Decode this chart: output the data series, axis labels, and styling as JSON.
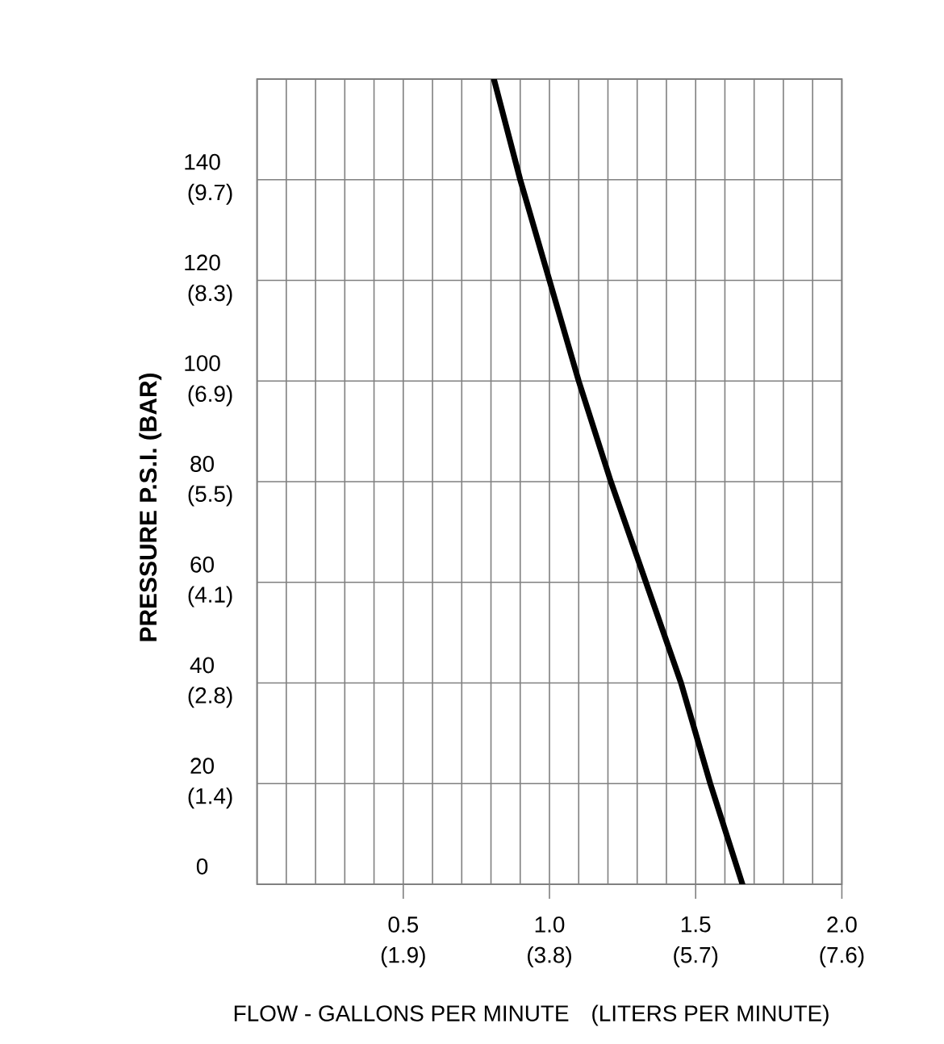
{
  "chart_data": {
    "type": "line",
    "xlabel": "FLOW - GALLONS PER MINUTE",
    "x2label": "(LITERS PER MINUTE)",
    "ylabel": "PRESSURE P.S.I. (BAR)",
    "x": [
      0.81,
      0.9,
      1.0,
      1.1,
      1.21,
      1.33,
      1.45,
      1.55,
      1.66
    ],
    "values": [
      160,
      140,
      120,
      100,
      80,
      60,
      40,
      20,
      0
    ],
    "color": "#000000",
    "xlim": [
      0,
      2.0
    ],
    "ylim": [
      0,
      160
    ],
    "xticks": [
      {
        "value": 0,
        "label": null
      },
      {
        "value": 0.1,
        "label": null
      },
      {
        "value": 0.2,
        "label": null
      },
      {
        "value": 0.3,
        "label": null
      },
      {
        "value": 0.4,
        "label": null
      },
      {
        "value": 0.5,
        "label": "0.5"
      },
      {
        "value": 0.6,
        "label": null
      },
      {
        "value": 0.7,
        "label": null
      },
      {
        "value": 0.8,
        "label": null
      },
      {
        "value": 0.9,
        "label": null
      },
      {
        "value": 1.0,
        "label": "1.0"
      },
      {
        "value": 1.1,
        "label": null
      },
      {
        "value": 1.2,
        "label": null
      },
      {
        "value": 1.3,
        "label": null
      },
      {
        "value": 1.4,
        "label": null
      },
      {
        "value": 1.5,
        "label": "1.5"
      },
      {
        "value": 1.6,
        "label": null
      },
      {
        "value": 1.7,
        "label": null
      },
      {
        "value": 1.8,
        "label": null
      },
      {
        "value": 1.9,
        "label": null
      },
      {
        "value": 2.0,
        "label": "2.0"
      }
    ],
    "yticks": [
      0,
      20,
      40,
      60,
      80,
      100,
      120,
      140
    ],
    "x2lim": [
      0,
      7.6
    ],
    "x2ticks": [
      {
        "value": 1.9,
        "label": "(1.9)"
      },
      {
        "value": 3.8,
        "label": "(3.8)"
      },
      {
        "value": 5.7,
        "label": "(5.7)"
      },
      {
        "value": 7.6,
        "label": "(7.6)"
      }
    ],
    "y2lim": [
      0,
      11.03
    ],
    "y2ticks": [
      {
        "value": 1.38,
        "label": "(1.4)"
      },
      {
        "value": 2.76,
        "label": "(2.8)"
      },
      {
        "value": 4.14,
        "label": "(4.1)"
      },
      {
        "value": 5.52,
        "label": "(5.5)"
      },
      {
        "value": 6.89,
        "label": "(6.9)"
      },
      {
        "value": 8.27,
        "label": "(8.3)"
      },
      {
        "value": 9.65,
        "label": "(9.7)"
      }
    ],
    "grid": true
  }
}
